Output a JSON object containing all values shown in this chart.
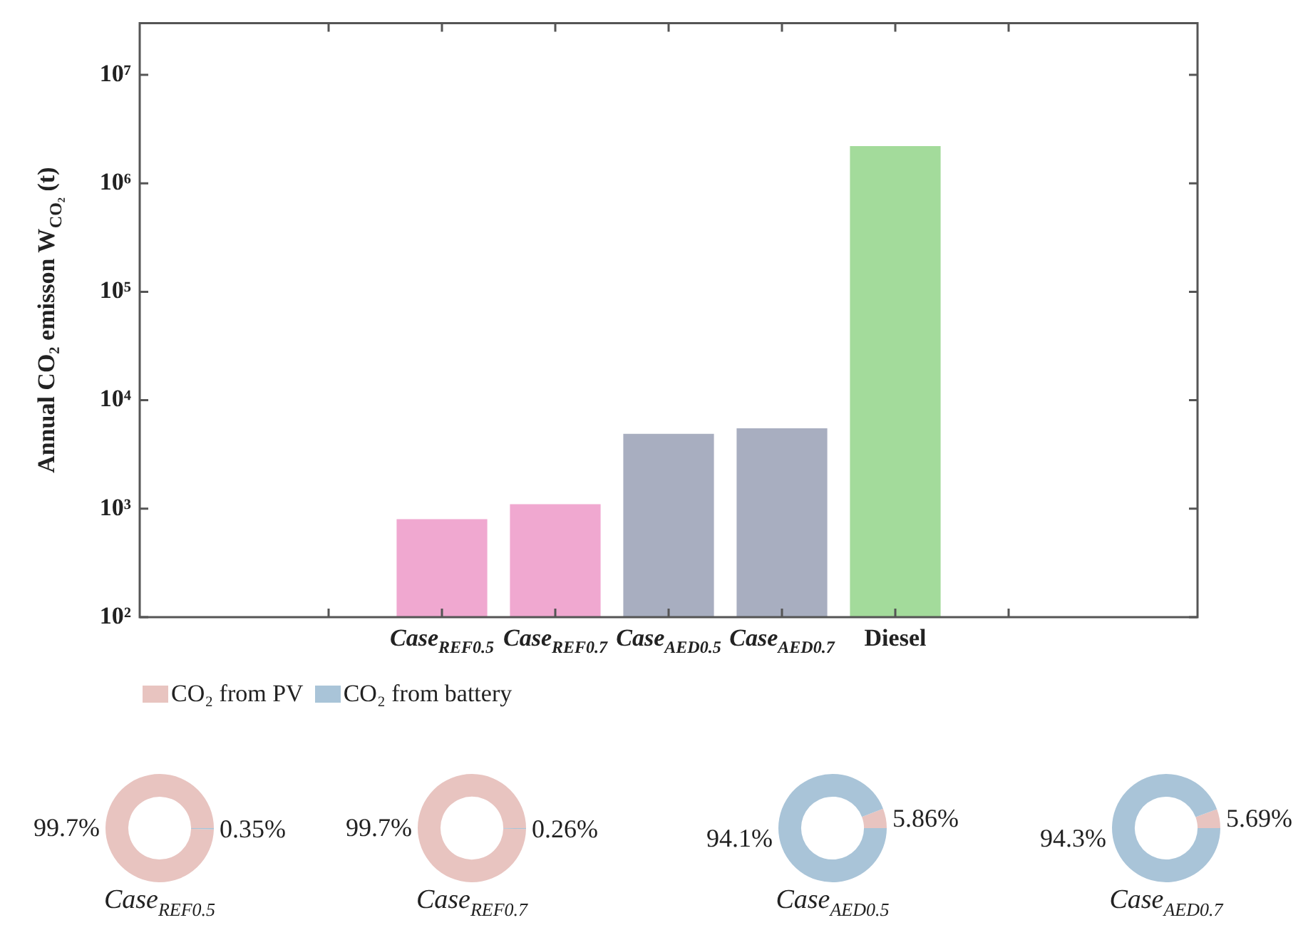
{
  "chart_data": [
    {
      "type": "bar",
      "ylabel": "Annual CO₂ emisson W$_{CO₂}$ (t)",
      "categories": [
        null,
        "Case$_{REF0.5}$",
        "Case$_{REF0.7}$",
        "Case$_{AED0.5}$",
        "Case$_{AED0.7}$",
        "Diesel",
        null
      ],
      "values": [
        null,
        800,
        1100,
        4900,
        5500,
        2200000,
        null
      ],
      "colors": [
        null,
        "#f0a8d0",
        "#f0a8d0",
        "#a8aec0",
        "#a8aec0",
        "#a3db9b",
        null
      ],
      "log": true,
      "ylim": [
        100,
        30000000
      ],
      "yticks": [
        {
          "value": 100,
          "label": "10²"
        },
        {
          "value": 1000,
          "label": "10³"
        },
        {
          "value": 10000,
          "label": "10⁴"
        },
        {
          "value": 100000,
          "label": "10⁵"
        },
        {
          "value": 1000000,
          "label": "10⁶"
        },
        {
          "value": 10000000,
          "label": "10⁷"
        }
      ],
      "grid": false,
      "legend": false
    },
    {
      "type": "donut",
      "title": "Case$_{REF0.5}$",
      "categories": [
        "CO₂ from PV",
        "CO₂ from battery"
      ],
      "values": [
        99.7,
        0.35
      ],
      "value_labels": [
        "99.7%",
        "0.35%"
      ],
      "colors": [
        "#e8c4c0",
        "#a9c4d8"
      ],
      "legend": "top"
    },
    {
      "type": "donut",
      "title": "Case$_{REF0.7}$",
      "values": [
        99.7,
        0.26
      ],
      "value_labels": [
        "99.7%",
        "0.26%"
      ],
      "colors": [
        "#e8c4c0",
        "#a9c4d8"
      ]
    },
    {
      "type": "donut",
      "title": "Case$_{AED0.5}$",
      "values": [
        5.86,
        94.1
      ],
      "value_labels": [
        "5.86%",
        "94.1%"
      ],
      "colors": [
        "#e8c4c0",
        "#a9c4d8"
      ]
    },
    {
      "type": "donut",
      "title": "Case$_{AED0.7}$",
      "values": [
        5.69,
        94.3
      ],
      "value_labels": [
        "5.69%",
        "94.3%"
      ],
      "colors": [
        "#e8c4c0",
        "#a9c4d8"
      ]
    }
  ]
}
